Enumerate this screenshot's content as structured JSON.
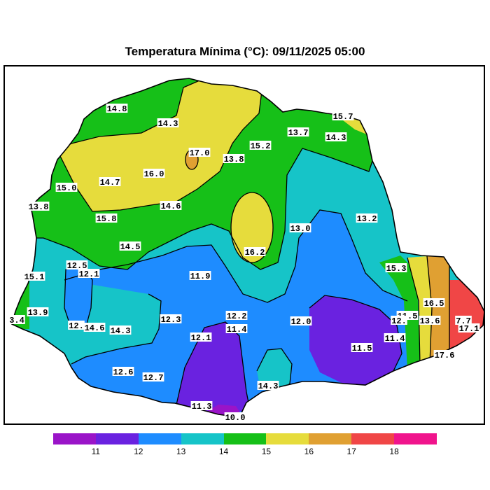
{
  "title": "Temperatura Mínima (°C): 09/11/2025 05:00",
  "legend": {
    "colors": [
      "#9a14c8",
      "#6a22e0",
      "#1e8cff",
      "#16c4c8",
      "#16c018",
      "#e6dc3c",
      "#e0a032",
      "#f04646",
      "#f0148c"
    ],
    "ticks": [
      "11",
      "12",
      "13",
      "14",
      "15",
      "16",
      "17",
      "18"
    ]
  },
  "zone_colors": {
    "below_11": "#9a14c8",
    "11_12": "#6a22e0",
    "12_13": "#1e8cff",
    "13_14": "#16c4c8",
    "14_15": "#16c018",
    "15_16": "#e6dc3c",
    "16_17": "#e0a032",
    "17_18": "#f04646",
    "above_18": "#f0148c"
  },
  "station_values": [
    "14.8",
    "14.3",
    "15.7",
    "13.7",
    "14.3",
    "17.0",
    "15.2",
    "13.8",
    "16.0",
    "14.7",
    "15.0",
    "14.6",
    "13.8",
    "15.8",
    "13.0",
    "13.2",
    "14.5",
    "16.2",
    "12.5",
    "12.1",
    "15.1",
    "11.9",
    "15.3",
    "16.5",
    "13.9",
    "3.4",
    "12.3",
    "12.2",
    "11.4",
    "12.0",
    "12.",
    "14.6",
    "14.3",
    "11.5",
    "12.",
    "13.6",
    "7.7",
    "17.1",
    "12.1",
    "11.4",
    "11.5",
    "17.6",
    "12.6",
    "12.7",
    "14.3",
    "11.3",
    "10.0"
  ]
}
